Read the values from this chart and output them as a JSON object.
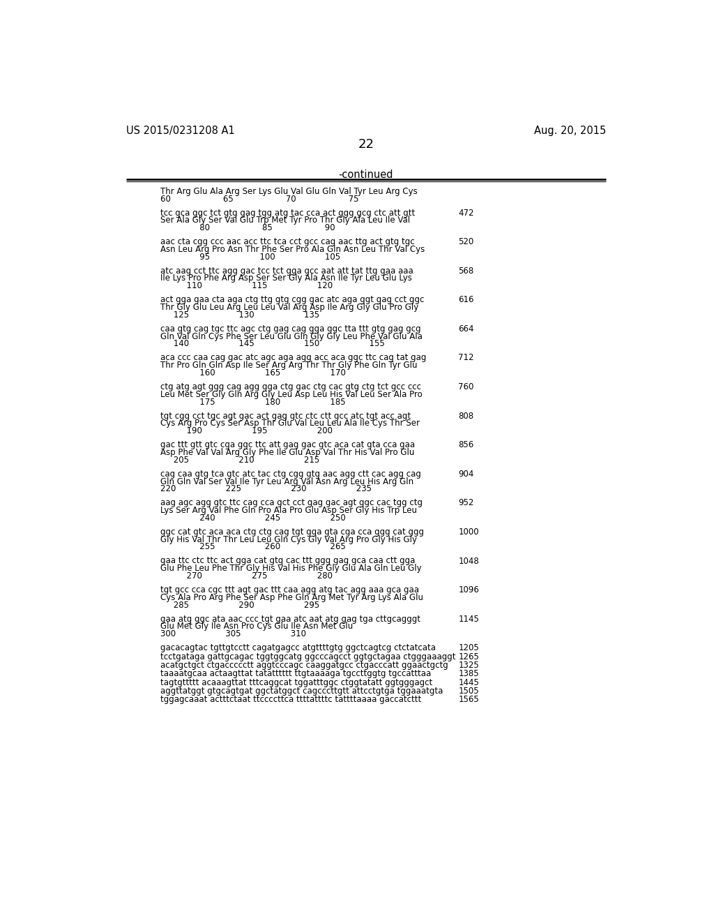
{
  "header_left": "US 2015/0231208 A1",
  "header_right": "Aug. 20, 2015",
  "page_number": "22",
  "continued_label": "-continued",
  "background_color": "#ffffff",
  "text_color": "#000000",
  "content_blocks": [
    {
      "line1": "Thr Arg Glu Ala Arg Ser Lys Glu Val Glu Gln Val Tyr Leu Arg Cys",
      "line2": "60                    65                    70                    75",
      "line3": null,
      "number": null
    },
    {
      "line1": "tcc gca ggc tct gtg gag tgg atg tac cca act ggg gcg ctc att gtt",
      "line2": "Ser Ala Gly Ser Val Glu Trp Met Tyr Pro Thr Gly Ala Leu Ile Val",
      "line3": "               80                    85                    90",
      "number": "472"
    },
    {
      "line1": "aac cta cgg ccc aac acc ttc tca cct gcc cag aac ttg act gtg tgc",
      "line2": "Asn Leu Arg Pro Asn Thr Phe Ser Pro Ala Gln Asn Leu Thr Val Cys",
      "line3": "               95                   100                   105",
      "number": "520"
    },
    {
      "line1": "atc aag cct ttc agg gac tcc tct gga gcc aat att tat ttg gaa aaa",
      "line2": "Ile Lys Pro Phe Arg Asp Ser Ser Gly Ala Asn Ile Tyr Leu Glu Lys",
      "line3": "          110                   115                   120",
      "number": "568"
    },
    {
      "line1": "act gga gaa cta aga ctg ttg gtg cgg gac atc aga ggt gag cct ggc",
      "line2": "Thr Gly Glu Leu Arg Leu Leu Val Arg Asp Ile Arg Gly Glu Pro Gly",
      "line3": "     125                   130                   135",
      "number": "616"
    },
    {
      "line1": "caa gtg cag tgc ttc agc ctg gag cag gga ggc tta ttt gtg gag gcg",
      "line2": "Gln Val Gln Cys Phe Ser Leu Glu Gln Gly Gly Leu Phe Val Glu Ala",
      "line3": "     140                   145                   150                   155",
      "number": "664"
    },
    {
      "line1": "aca ccc caa cag gac atc agc aga agg acc aca ggc ttc cag tat gag",
      "line2": "Thr Pro Gln Gln Asp Ile Ser Arg Arg Thr Thr Gly Phe Gln Tyr Glu",
      "line3": "               160                   165                   170",
      "number": "712"
    },
    {
      "line1": "ctg atg agt ggg cag agg gga ctg gac ctg cac gtg ctg tct gcc ccc",
      "line2": "Leu Met Ser Gly Gln Arg Gly Leu Asp Leu His Val Leu Ser Ala Pro",
      "line3": "               175                   180                   185",
      "number": "760"
    },
    {
      "line1": "tgt cgg cct tgc agt gac act gag gtc ctc ctt gcc atc tgt acc agt",
      "line2": "Cys Arg Pro Cys Ser Asp Thr Glu Val Leu Leu Ala Ile Cys Thr Ser",
      "line3": "          190                   195                   200",
      "number": "808"
    },
    {
      "line1": "gac ttt gtt gtc cga ggc ttc att gag gac gtc aca cat gta cca gaa",
      "line2": "Asp Phe Val Val Arg Gly Phe Ile Glu Asp Val Thr His Val Pro Glu",
      "line3": "     205                   210                   215",
      "number": "856"
    },
    {
      "line1": "cag caa gtg tca gtc atc tac ctg cgg gtg aac agg ctt cac agg cag",
      "line2": "Gln Gln Val Ser Val Ile Tyr Leu Arg Val Asn Arg Leu His Arg Gln",
      "line3": "220                   225                   230                   235",
      "number": "904"
    },
    {
      "line1": "aag agc agg gtc ttc cag cca gct cct gag gac agt ggc cac tgg ctg",
      "line2": "Lys Ser Arg Val Phe Gln Pro Ala Pro Glu Asp Ser Gly His Trp Leu",
      "line3": "               240                   245                   250",
      "number": "952"
    },
    {
      "line1": "ggc cat gtc aca aca ctg ctg cag tgt gga gta cga cca ggg cat ggg",
      "line2": "Gly His Val Thr Thr Leu Leu Gln Cys Gly Val Arg Pro Gly His Gly",
      "line3": "               255                   260                   265",
      "number": "1000"
    },
    {
      "line1": "gaa ttc ctc ttc act gga cat gtg cac ttt ggg gag gca caa ctt gga",
      "line2": "Glu Phe Leu Phe Thr Gly His Val His Phe Gly Glu Ala Gln Leu Gly",
      "line3": "          270                   275                   280",
      "number": "1048"
    },
    {
      "line1": "tgt gcc cca cgc ttt agt gac ttt caa agg atg tac agg aaa gca gaa",
      "line2": "Cys Ala Pro Arg Phe Ser Asp Phe Gln Arg Met Tyr Arg Lys Ala Glu",
      "line3": "     285                   290                   295",
      "number": "1096"
    },
    {
      "line1": "gaa atg ggc ata aac ccc tgt gaa atc aat atg gag tga cttgcagggt",
      "line2": "Glu Met Gly Ile Asn Pro Cys Glu Ile Asn Met Glu",
      "line3": "300                   305                   310",
      "number": "1145"
    },
    {
      "line1": "gacacagtac tgttgtcctt cagatgagcc atgttttgtg ggctcagtcg ctctatcata",
      "line2": null,
      "line3": null,
      "number": "1205"
    },
    {
      "line1": "tcctgataga gattgcagac tggtggcatg ggcccagcct ggtgctagaa ctgggaaaggt",
      "line2": null,
      "line3": null,
      "number": "1265"
    },
    {
      "line1": "acatgctgct ctgaccccctt aggtcccagc caaggatgcc ctgacccatt ggaactgctg",
      "line2": null,
      "line3": null,
      "number": "1325"
    },
    {
      "line1": "taaaatgcaa actaagttat tatatttttt ttgtaaaaga tgccttggtg tgccatttaa",
      "line2": null,
      "line3": null,
      "number": "1385"
    },
    {
      "line1": "tagtgttttt acaaagttat tttcaggcat tggatttggc ctggtatatt ggtgggagct",
      "line2": null,
      "line3": null,
      "number": "1445"
    },
    {
      "line1": "aggttatggt gtgcagtgat ggctatggct cagcccttgtt attcctgtga tggaaatgta",
      "line2": null,
      "line3": null,
      "number": "1505"
    },
    {
      "line1": "tggagcaaat actttctaat ttccccttca ttttattttc tattttaaaa gaccatcttt",
      "line2": null,
      "line3": null,
      "number": "1565"
    }
  ]
}
